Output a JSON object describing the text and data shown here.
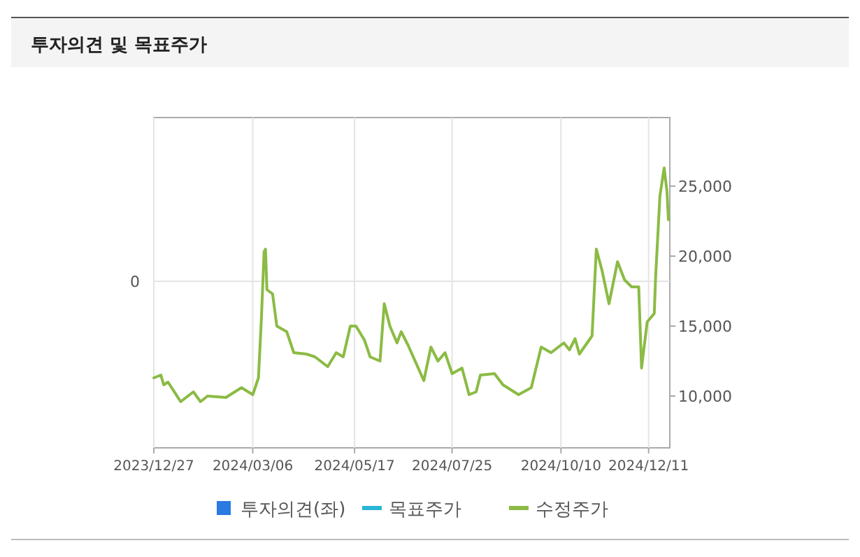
{
  "chart_data": {
    "type": "line",
    "title": "투자의견 및 목표주가",
    "x": [
      "2023-12-27",
      "2024-01-01",
      "2024-01-03",
      "2024-01-06",
      "2024-01-15",
      "2024-01-24",
      "2024-01-29",
      "2024-02-03",
      "2024-02-16",
      "2024-02-27",
      "2024-03-06",
      "2024-03-10",
      "2024-03-12",
      "2024-03-14",
      "2024-03-15",
      "2024-03-16",
      "2024-03-20",
      "2024-03-23",
      "2024-03-30",
      "2024-04-04",
      "2024-04-13",
      "2024-04-19",
      "2024-04-28",
      "2024-05-04",
      "2024-05-09",
      "2024-05-14",
      "2024-05-18",
      "2024-05-24",
      "2024-05-28",
      "2024-06-04",
      "2024-06-07",
      "2024-06-11",
      "2024-06-16",
      "2024-06-19",
      "2024-06-24",
      "2024-07-05",
      "2024-07-10",
      "2024-07-15",
      "2024-07-20",
      "2024-07-25",
      "2024-08-01",
      "2024-08-06",
      "2024-08-11",
      "2024-08-14",
      "2024-08-24",
      "2024-08-30",
      "2024-09-10",
      "2024-09-19",
      "2024-09-26",
      "2024-10-03",
      "2024-10-12",
      "2024-10-16",
      "2024-10-20",
      "2024-10-23",
      "2024-11-01",
      "2024-11-04",
      "2024-11-08",
      "2024-11-13",
      "2024-11-19",
      "2024-11-24",
      "2024-11-29",
      "2024-12-04",
      "2024-12-06",
      "2024-12-10",
      "2024-12-15",
      "2024-12-16",
      "2024-12-19",
      "2024-12-22",
      "2024-12-24",
      "2024-12-25"
    ],
    "series": [
      {
        "name": "투자의견(좌)",
        "type": "bar",
        "color": "#2a7ae2",
        "values": [
          null,
          null,
          null,
          null,
          null,
          null,
          null,
          null,
          null,
          null,
          null,
          null,
          null,
          null,
          null,
          null,
          null,
          null,
          null,
          null,
          null,
          null,
          null,
          null,
          null,
          null,
          null,
          null,
          null,
          null,
          null,
          null,
          null,
          null,
          null,
          null,
          null,
          null,
          null,
          null,
          null,
          null,
          null,
          null,
          null,
          null,
          null,
          null,
          null,
          null,
          null,
          null,
          null,
          null,
          null,
          null,
          null,
          null,
          null,
          null,
          null,
          null,
          null,
          null,
          null,
          null,
          null,
          null,
          null,
          null
        ]
      },
      {
        "name": "목표주가",
        "type": "line",
        "color": "#29b6d6",
        "axis": "y2",
        "values": [
          null,
          null,
          null,
          null,
          null,
          null,
          null,
          null,
          null,
          null,
          null,
          null,
          null,
          null,
          null,
          null,
          null,
          null,
          null,
          null,
          null,
          null,
          null,
          null,
          null,
          null,
          null,
          null,
          null,
          null,
          null,
          null,
          null,
          null,
          null,
          null,
          null,
          null,
          null,
          null,
          null,
          null,
          null,
          null,
          null,
          null,
          null,
          null,
          null,
          null,
          null,
          null,
          null,
          null,
          null,
          null,
          null,
          null,
          null,
          null,
          null,
          null,
          null,
          null,
          null,
          null,
          null,
          null,
          null,
          null
        ]
      },
      {
        "name": "수정주가",
        "color": "#8bbb44",
        "axis": "y2",
        "values": [
          11300,
          11500,
          10800,
          11000,
          9600,
          10300,
          9600,
          10000,
          9900,
          10600,
          10100,
          11300,
          15300,
          20300,
          20500,
          17600,
          17300,
          15000,
          14600,
          13100,
          13000,
          12800,
          12100,
          13100,
          12800,
          15000,
          15000,
          14000,
          12800,
          12500,
          16600,
          15000,
          13800,
          14600,
          13600,
          11100,
          13500,
          12500,
          13100,
          11600,
          12000,
          10100,
          10300,
          11500,
          11600,
          10800,
          10100,
          10600,
          13500,
          13100,
          13800,
          13300,
          14100,
          13000,
          14300,
          20500,
          19000,
          16600,
          19600,
          18300,
          17800,
          17800,
          12000,
          15300,
          15900,
          18600,
          24300,
          26300,
          24600,
          22600
        ]
      }
    ],
    "xlim": [
      "2023-12-27",
      "2024-12-26"
    ],
    "xticks": [
      {
        "value": "2023-12-27",
        "label": "2023/12/27"
      },
      {
        "value": "2024-03-06",
        "label": "2024/03/06"
      },
      {
        "value": "2024-05-17",
        "label": "2024/05/17"
      },
      {
        "value": "2024-07-25",
        "label": "2024/07/25"
      },
      {
        "value": "2024-10-10",
        "label": "2024/10/10"
      },
      {
        "value": "2024-12-11",
        "label": "2024/12/11"
      }
    ],
    "annotations": [
      "0"
    ],
    "y2lim": [
      6300,
      29900
    ],
    "y2ticks": [
      {
        "value": 10000,
        "label": "10,000"
      },
      {
        "value": 15000,
        "label": "15,000"
      },
      {
        "value": 20000,
        "label": "20,000"
      },
      {
        "value": 25000,
        "label": "25,000"
      }
    ],
    "grid": true,
    "legend": "bottom",
    "marker": "none",
    "line_style": "solid"
  }
}
